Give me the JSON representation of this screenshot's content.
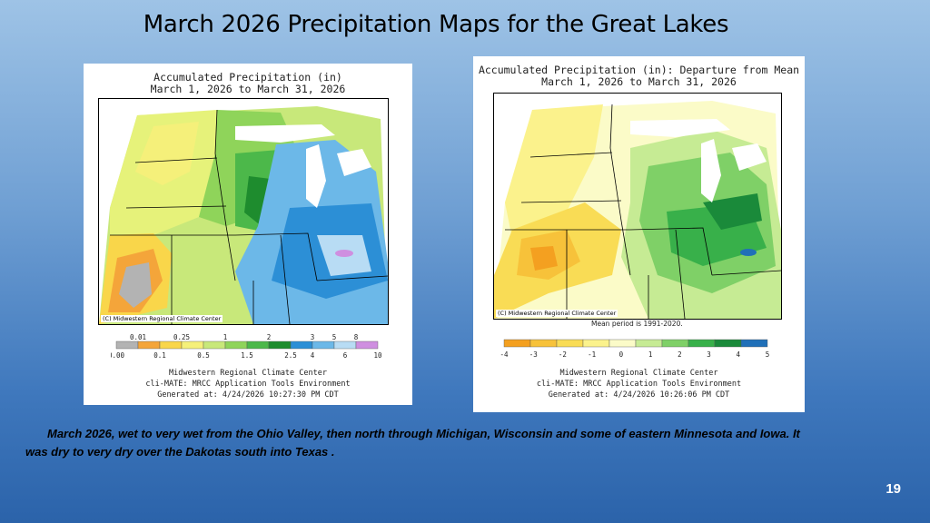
{
  "slide": {
    "title": "March 2026 Precipitation Maps for the  Great Lakes",
    "caption": "March 2026, wet to very wet from the Ohio Valley, then north through Michigan, Wisconsin and some of eastern Minnesota and Iowa. It was dry to very dry over the Dakotas south into Texas .",
    "page_number": "19"
  },
  "left_map": {
    "title_line1": "Accumulated Precipitation (in)",
    "title_line2": "March 1, 2026 to March 31, 2026",
    "credit": "(C) Midwestern Regional Climate Center",
    "legend_top_labels": [
      "0.01",
      "0.25",
      "1",
      "2",
      "3",
      "5",
      "8"
    ],
    "legend_bottom_labels": [
      "0.00",
      "0.1",
      "0.5",
      "1.5",
      "2.5",
      "4",
      "6",
      "10"
    ],
    "legend_colors": [
      "#b3b3b3",
      "#f4a53a",
      "#f9d64a",
      "#f5f07a",
      "#c8e87a",
      "#8fd45a",
      "#4cb84a",
      "#1e8c2e",
      "#2c8fd6",
      "#6cb8e8",
      "#b8dcf4",
      "#cf8fe0"
    ],
    "footer1": "Midwestern Regional Climate Center",
    "footer2": "cli-MATE: MRCC Application Tools Environment",
    "footer3": "Generated at: 4/24/2026 10:27:30 PM CDT"
  },
  "right_map": {
    "title_line1": "Accumulated Precipitation (in): Departure from Mean",
    "title_line2": "March 1, 2026 to March 31, 2026",
    "credit": "(C) Midwestern Regional Climate Center",
    "mean_period": "Mean period is 1991-2020.",
    "legend_labels": [
      "-4",
      "-3",
      "-2",
      "-1",
      "0",
      "1",
      "2",
      "3",
      "4",
      "5"
    ],
    "legend_colors": [
      "#f4a020",
      "#f7c23a",
      "#f9dc55",
      "#fbf28c",
      "#fbfbc8",
      "#c6eb94",
      "#7fd067",
      "#38b04a",
      "#1a8a3a",
      "#2070b8"
    ],
    "footer1": "Midwestern Regional Climate Center",
    "footer2": "cli-MATE: MRCC Application Tools Environment",
    "footer3": "Generated at: 4/24/2026 10:26:06 PM CDT"
  }
}
